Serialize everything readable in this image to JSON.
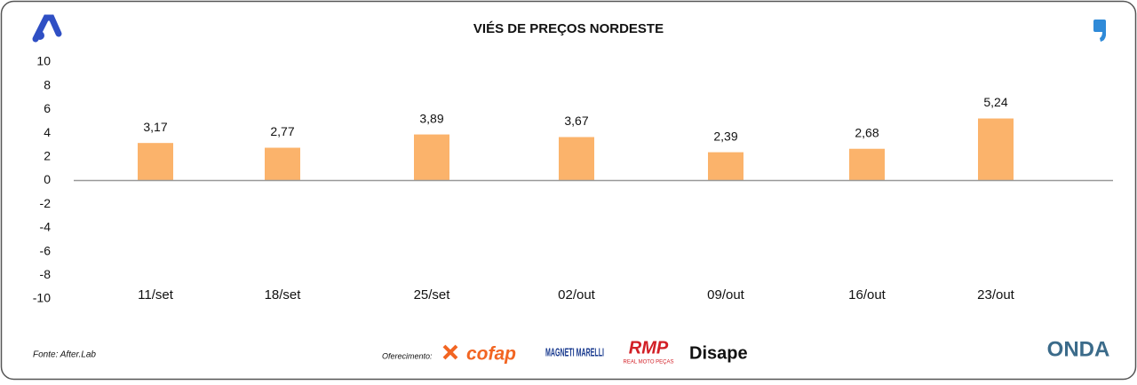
{
  "chart_data": {
    "type": "bar",
    "title": "VIÉS DE PREÇOS NORDESTE",
    "categories": [
      "11/set",
      "18/set",
      "25/set",
      "02/out",
      "09/out",
      "16/out",
      "23/out"
    ],
    "values": [
      3.17,
      2.77,
      3.89,
      3.67,
      2.39,
      2.68,
      5.24
    ],
    "value_labels": [
      "3,17",
      "2,77",
      "3,89",
      "3,67",
      "2,39",
      "2,68",
      "5,24"
    ],
    "color": "#fbb36b",
    "ylim": [
      -10,
      10
    ],
    "yticks": [
      -10,
      -8,
      -6,
      -4,
      -2,
      0,
      2,
      4,
      6,
      8,
      10
    ],
    "grid": false
  },
  "footer": {
    "source": "Fonte: After.Lab",
    "sponsor_label": "Oferecimento:",
    "sponsors": [
      "cofap",
      "MAGNETI MARELLI",
      "RMP",
      "REAL MOTO PEÇAS",
      "Disape"
    ],
    "brand": "ONDA"
  }
}
